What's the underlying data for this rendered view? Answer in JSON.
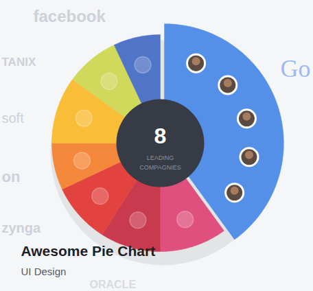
{
  "chart_data": {
    "type": "pie",
    "title": "Awesome Pie Chart",
    "subtitle": "UI Design",
    "categories": [
      null,
      null,
      null,
      null,
      null,
      null,
      null,
      null
    ],
    "values": [
      40,
      10,
      9,
      9,
      7,
      10,
      8,
      7
    ],
    "colors": [
      "#5590e8",
      "#e0507f",
      "#c93a4f",
      "#e2433f",
      "#f4883a",
      "#fabd37",
      "#d0d95b",
      "#5074c6"
    ],
    "data_labels": false,
    "center_text": {
      "value": 8,
      "lines": [
        "LEADING",
        "COMPAGNIES"
      ]
    },
    "background_texts": [
      "facebook",
      "TANIX",
      "soft",
      "on",
      "zynga",
      "Go",
      "ORACLE"
    ]
  }
}
